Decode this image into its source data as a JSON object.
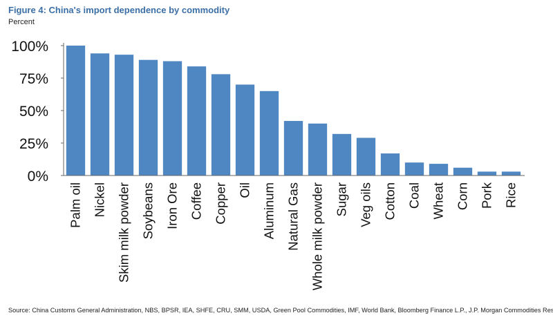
{
  "figure": {
    "title": "Figure 4: China's import dependence by commodity",
    "subtitle": "Percent",
    "source": "Source: China Customs General Administration, NBS, BPSR, IEA, SHFE, CRU, SMM, USDA, Green Pool Commodities, IMF, World Bank, Bloomberg Finance L.P., J.P. Morgan Commodities Research"
  },
  "colors": {
    "bar": "#4f87c2",
    "axis": "#666666",
    "text": "#111111",
    "title": "#3b6fa6"
  },
  "chart_data": {
    "type": "bar",
    "title": "Figure 4: China's import dependence by commodity",
    "ylabel": "Percent",
    "xlabel": "",
    "ylim": [
      0,
      100
    ],
    "yticks": [
      0,
      25,
      50,
      75,
      100
    ],
    "ytick_labels": [
      "0%",
      "25%",
      "50%",
      "75%",
      "100%"
    ],
    "grid": false,
    "categories": [
      "Palm oil",
      "Nickel",
      "Skim milk powder",
      "Soybeans",
      "Iron Ore",
      "Coffee",
      "Copper",
      "Oil",
      "Aluminum",
      "Natural Gas",
      "Whole milk powder",
      "Sugar",
      "Veg oils",
      "Cotton",
      "Coal",
      "Wheat",
      "Corn",
      "Pork",
      "Rice"
    ],
    "values": [
      100,
      94,
      93,
      89,
      88,
      84,
      78,
      70,
      65,
      42,
      40,
      32,
      29,
      17,
      10,
      9,
      6,
      3,
      3
    ]
  }
}
